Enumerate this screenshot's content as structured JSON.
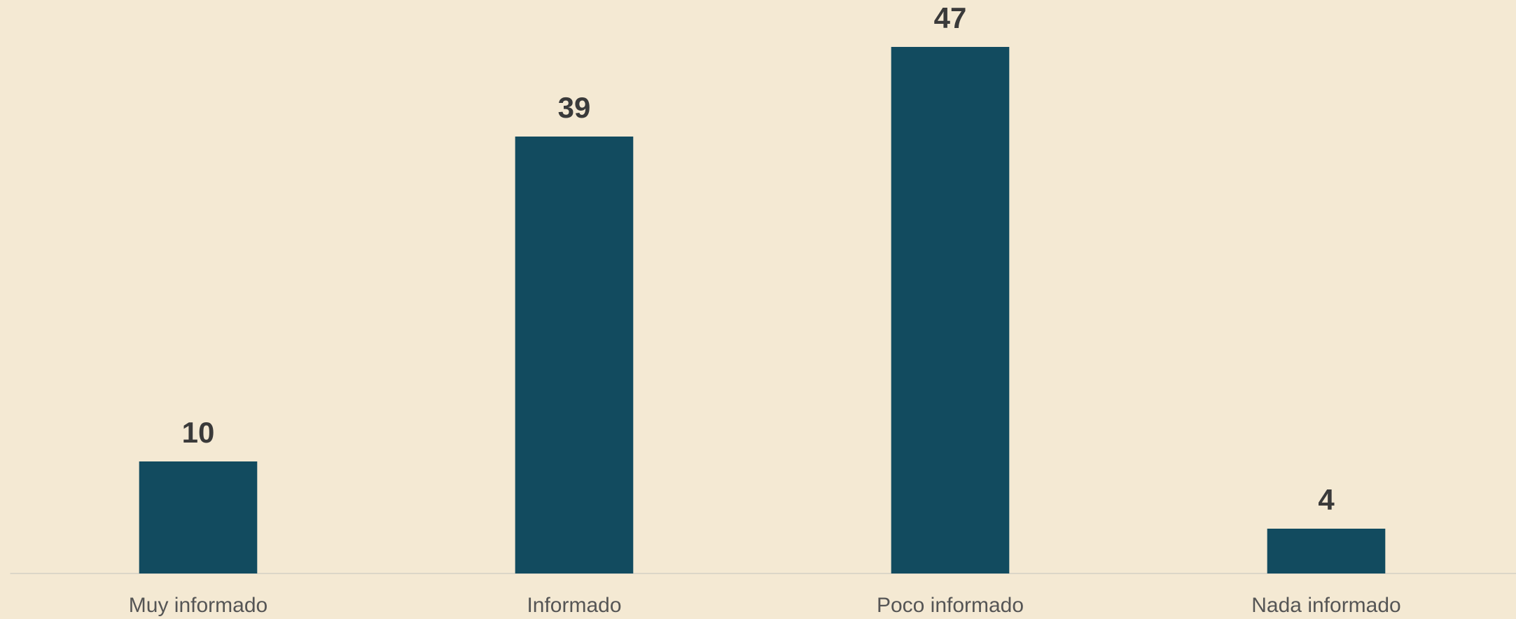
{
  "chart_data": {
    "type": "bar",
    "categories": [
      "Muy informado",
      "Informado",
      "Poco informado",
      "Nada informado"
    ],
    "values": [
      10,
      39,
      47,
      4
    ],
    "color": "#124b5f",
    "ylim": [
      0,
      50
    ],
    "grid": false
  }
}
